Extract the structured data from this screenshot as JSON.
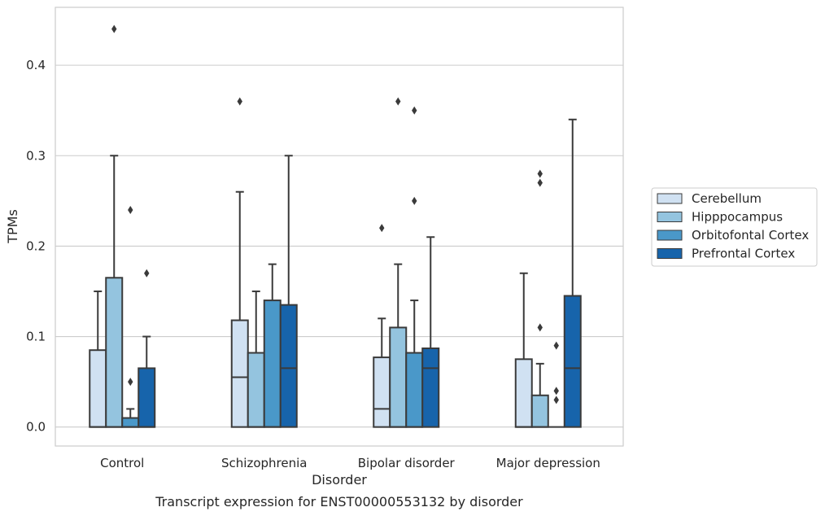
{
  "chart_data": {
    "type": "box",
    "caption": "Transcript expression for ENST00000553132 by disorder",
    "xlabel": "Disorder",
    "ylabel": "TPMs",
    "ylim": [
      -0.021,
      0.464
    ],
    "yticks": [
      0.0,
      0.1,
      0.2,
      0.3,
      0.4
    ],
    "ytick_labels": [
      "0.0",
      "0.1",
      "0.2",
      "0.3",
      "0.4"
    ],
    "grid": "horizontal",
    "legend_position": "center-right, outside plot",
    "categories": [
      "Control",
      "Schizophrenia",
      "Bipolar disorder",
      "Major depression"
    ],
    "series": [
      {
        "name": "Cerebellum",
        "color": "#d0e1f2",
        "boxes": [
          {
            "min": 0.0,
            "q1": 0.0,
            "median": 0.0,
            "q3": 0.085,
            "max": 0.15,
            "outliers": []
          },
          {
            "min": 0.0,
            "q1": 0.0,
            "median": 0.055,
            "q3": 0.118,
            "max": 0.26,
            "outliers": [
              0.36
            ]
          },
          {
            "min": 0.0,
            "q1": 0.0,
            "median": 0.02,
            "q3": 0.077,
            "max": 0.12,
            "outliers": [
              0.22
            ]
          },
          {
            "min": 0.0,
            "q1": 0.0,
            "median": 0.0,
            "q3": 0.075,
            "max": 0.17,
            "outliers": []
          }
        ]
      },
      {
        "name": "Hipppocampus",
        "color": "#94c4df",
        "boxes": [
          {
            "min": 0.0,
            "q1": 0.0,
            "median": 0.0,
            "q3": 0.165,
            "max": 0.3,
            "outliers": [
              0.44
            ]
          },
          {
            "min": 0.0,
            "q1": 0.0,
            "median": 0.0,
            "q3": 0.082,
            "max": 0.15,
            "outliers": []
          },
          {
            "min": 0.0,
            "q1": 0.0,
            "median": 0.0,
            "q3": 0.11,
            "max": 0.18,
            "outliers": [
              0.36
            ]
          },
          {
            "min": 0.0,
            "q1": 0.0,
            "median": 0.0,
            "q3": 0.035,
            "max": 0.07,
            "outliers": [
              0.11,
              0.27,
              0.28
            ]
          }
        ]
      },
      {
        "name": "Orbitofontal Cortex",
        "color": "#4a98c9",
        "boxes": [
          {
            "min": 0.0,
            "q1": 0.0,
            "median": 0.0,
            "q3": 0.01,
            "max": 0.02,
            "outliers": [
              0.05,
              0.24
            ]
          },
          {
            "min": 0.0,
            "q1": 0.0,
            "median": 0.0,
            "q3": 0.14,
            "max": 0.18,
            "outliers": []
          },
          {
            "min": 0.0,
            "q1": 0.0,
            "median": 0.0,
            "q3": 0.082,
            "max": 0.14,
            "outliers": [
              0.25,
              0.35
            ]
          },
          {
            "min": 0.0,
            "q1": 0.0,
            "median": 0.0,
            "q3": 0.0,
            "max": 0.0,
            "outliers": [
              0.03,
              0.04,
              0.09
            ]
          }
        ]
      },
      {
        "name": "Prefrontal Cortex",
        "color": "#1764ab",
        "boxes": [
          {
            "min": 0.0,
            "q1": 0.0,
            "median": 0.0,
            "q3": 0.065,
            "max": 0.1,
            "outliers": [
              0.17
            ]
          },
          {
            "min": 0.0,
            "q1": 0.0,
            "median": 0.065,
            "q3": 0.135,
            "max": 0.3,
            "outliers": []
          },
          {
            "min": 0.0,
            "q1": 0.0,
            "median": 0.065,
            "q3": 0.087,
            "max": 0.21,
            "outliers": []
          },
          {
            "min": 0.0,
            "q1": 0.0,
            "median": 0.065,
            "q3": 0.145,
            "max": 0.34,
            "outliers": []
          }
        ]
      }
    ]
  }
}
